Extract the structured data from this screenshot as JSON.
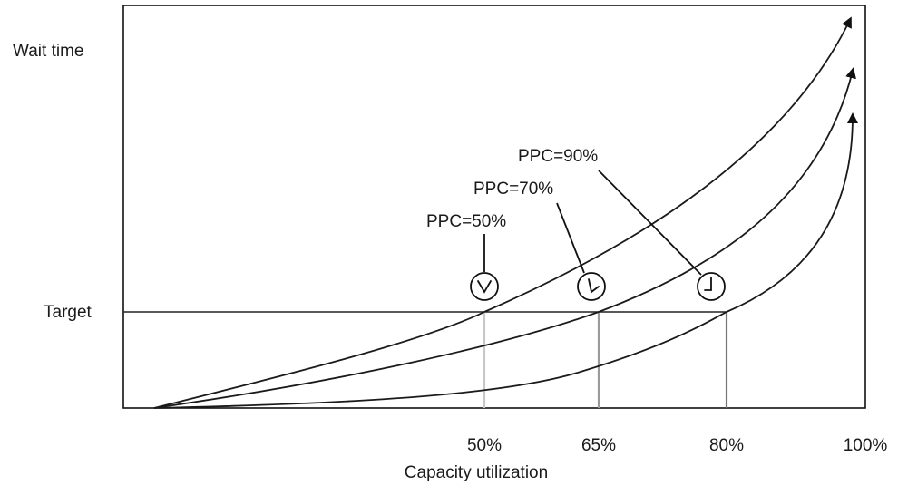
{
  "diagram": {
    "y_labels": {
      "top": "Wait time",
      "target": "Target"
    },
    "x_ticks": [
      "50%",
      "65%",
      "80%",
      "100%"
    ],
    "x_title": "Capacity utilization",
    "callouts": [
      "PPC=50%",
      "PPC=70%",
      "PPC=90%"
    ],
    "icons": [
      "clock-icon",
      "clock-icon",
      "clock-icon"
    ]
  }
}
